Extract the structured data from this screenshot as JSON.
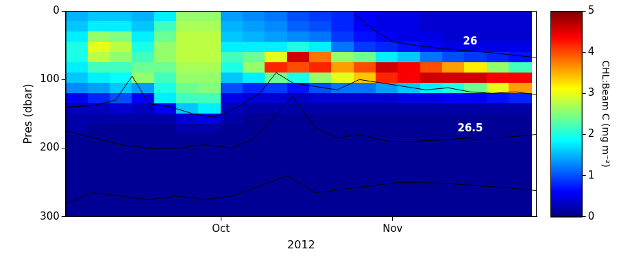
{
  "chart_data": {
    "type": "heatmap",
    "xlabel": "2012",
    "ylabel": "Pres (dbar)",
    "xlim": [
      247,
      332
    ],
    "xticks": [
      {
        "value": 275,
        "label": "Oct"
      },
      {
        "value": 306,
        "label": "Nov"
      }
    ],
    "ylim": [
      300,
      0
    ],
    "yticks": [
      0,
      100,
      200,
      300
    ],
    "grid": false,
    "x_edges": [
      247,
      251,
      255,
      259,
      263,
      267,
      271,
      275,
      279,
      283,
      287,
      291,
      295,
      299,
      303,
      307,
      311,
      315,
      319,
      323,
      327,
      331
    ],
    "y_edges": [
      0,
      15,
      30,
      45,
      60,
      75,
      90,
      105,
      120,
      135,
      150,
      165,
      180,
      195,
      210,
      225,
      240,
      255,
      270,
      285,
      300
    ],
    "cells": [
      [
        1.5,
        1.6,
        1.8,
        2.0,
        2.0,
        1.8,
        1.6,
        1.3,
        0.6,
        0.3,
        0.2,
        0.2,
        0.1,
        0.1,
        0.1,
        0.1,
        0.1,
        0.1,
        0.1,
        0.1
      ],
      [
        1.6,
        1.8,
        2.6,
        3.0,
        2.8,
        2.2,
        1.8,
        1.4,
        0.8,
        0.3,
        0.2,
        0.1,
        0.1,
        0.1,
        0.1,
        0.1,
        0.1,
        0.1,
        0.1,
        0.1
      ],
      [
        1.6,
        1.8,
        2.5,
        2.8,
        2.6,
        2.2,
        1.9,
        1.6,
        1.0,
        0.4,
        0.2,
        0.1,
        0.1,
        0.1,
        0.1,
        0.1,
        0.1,
        0.1,
        0.1,
        0.1
      ],
      [
        1.5,
        1.6,
        1.8,
        2.0,
        2.2,
        2.4,
        2.6,
        1.4,
        0.6,
        0.3,
        0.2,
        0.1,
        0.1,
        0.1,
        0.1,
        0.1,
        0.1,
        0.1,
        0.1,
        0.1
      ],
      [
        1.8,
        2.2,
        2.4,
        2.6,
        2.6,
        2.4,
        2.2,
        2.0,
        1.8,
        0.6,
        0.2,
        0.1,
        0.1,
        0.1,
        0.1,
        0.1,
        0.1,
        0.1,
        0.1,
        0.1
      ],
      [
        2.6,
        2.7,
        2.8,
        2.8,
        2.8,
        2.7,
        2.6,
        2.4,
        2.2,
        1.6,
        0.4,
        0.2,
        0.1,
        0.1,
        0.1,
        0.1,
        0.1,
        0.1,
        0.1,
        0.1
      ],
      [
        2.6,
        2.7,
        2.8,
        2.8,
        2.8,
        2.7,
        2.6,
        2.5,
        2.2,
        1.8,
        0.5,
        0.2,
        0.1,
        0.1,
        0.1,
        0.1,
        0.1,
        0.1,
        0.1,
        0.1
      ],
      [
        1.4,
        1.5,
        1.6,
        1.8,
        2.2,
        2.0,
        1.6,
        1.0,
        0.5,
        0.3,
        0.2,
        0.1,
        0.1,
        0.1,
        0.1,
        0.1,
        0.1,
        0.1,
        0.1,
        0.1
      ],
      [
        1.3,
        1.4,
        1.5,
        1.8,
        2.4,
        2.6,
        1.8,
        0.8,
        0.4,
        0.2,
        0.1,
        0.1,
        0.1,
        0.1,
        0.1,
        0.1,
        0.1,
        0.1,
        0.1,
        0.1
      ],
      [
        1.2,
        1.3,
        1.4,
        1.8,
        3.0,
        4.2,
        2.4,
        0.9,
        0.4,
        0.2,
        0.1,
        0.1,
        0.1,
        0.1,
        0.1,
        0.1,
        0.1,
        0.1,
        0.1,
        0.1
      ],
      [
        1.0,
        1.1,
        1.3,
        2.0,
        4.6,
        4.0,
        2.0,
        0.7,
        0.3,
        0.2,
        0.1,
        0.1,
        0.1,
        0.1,
        0.1,
        0.1,
        0.1,
        0.1,
        0.1,
        0.1
      ],
      [
        0.9,
        1.0,
        1.2,
        1.8,
        3.8,
        4.2,
        2.6,
        1.0,
        0.4,
        0.2,
        0.1,
        0.1,
        0.1,
        0.1,
        0.1,
        0.1,
        0.1,
        0.1,
        0.1,
        0.1
      ],
      [
        0.8,
        0.8,
        0.9,
        1.2,
        2.6,
        3.6,
        3.0,
        1.2,
        0.4,
        0.2,
        0.1,
        0.1,
        0.1,
        0.1,
        0.1,
        0.1,
        0.1,
        0.1,
        0.1,
        0.1
      ],
      [
        0.6,
        0.6,
        0.7,
        0.9,
        2.4,
        4.0,
        3.4,
        1.2,
        0.4,
        0.2,
        0.1,
        0.1,
        0.1,
        0.1,
        0.1,
        0.1,
        0.1,
        0.1,
        0.1,
        0.1
      ],
      [
        0.5,
        0.5,
        0.6,
        0.8,
        1.8,
        4.6,
        4.2,
        1.4,
        0.4,
        0.2,
        0.1,
        0.1,
        0.1,
        0.1,
        0.1,
        0.1,
        0.1,
        0.1,
        0.1,
        0.1
      ],
      [
        0.5,
        0.5,
        0.5,
        0.7,
        1.6,
        4.4,
        4.4,
        1.6,
        0.5,
        0.2,
        0.1,
        0.1,
        0.1,
        0.1,
        0.1,
        0.1,
        0.1,
        0.1,
        0.1,
        0.1
      ],
      [
        0.4,
        0.4,
        0.5,
        0.6,
        1.2,
        4.0,
        4.6,
        1.8,
        0.5,
        0.2,
        0.1,
        0.1,
        0.1,
        0.1,
        0.1,
        0.1,
        0.1,
        0.1,
        0.1,
        0.1
      ],
      [
        0.4,
        0.4,
        0.4,
        0.5,
        1.0,
        3.6,
        4.6,
        2.0,
        0.6,
        0.2,
        0.1,
        0.1,
        0.1,
        0.1,
        0.1,
        0.1,
        0.1,
        0.1,
        0.1,
        0.1
      ],
      [
        0.4,
        0.4,
        0.4,
        0.5,
        0.9,
        3.2,
        4.6,
        2.4,
        0.6,
        0.2,
        0.1,
        0.1,
        0.1,
        0.1,
        0.1,
        0.1,
        0.1,
        0.1,
        0.1,
        0.1
      ],
      [
        0.4,
        0.4,
        0.4,
        0.5,
        0.8,
        2.6,
        4.4,
        3.0,
        0.7,
        0.2,
        0.1,
        0.1,
        0.1,
        0.1,
        0.1,
        0.1,
        0.1,
        0.1,
        0.1,
        0.1
      ],
      [
        0.4,
        0.4,
        0.4,
        0.5,
        0.7,
        2.2,
        4.4,
        3.6,
        0.8,
        0.2,
        0.1,
        0.1,
        0.1,
        0.1,
        0.1,
        0.1,
        0.1,
        0.1,
        0.1,
        0.1
      ]
    ],
    "colorbar": {
      "label": "CHL:Beam C (mg m⁻²)",
      "lim": [
        0,
        5
      ],
      "ticks": [
        0,
        1,
        2,
        3,
        4,
        5
      ]
    },
    "contours": [
      {
        "label": "26",
        "color": "#000000",
        "x": [
          299,
          303,
          306,
          310,
          315,
          320,
          325,
          332
        ],
        "values": [
          5,
          30,
          45,
          50,
          55,
          58,
          62,
          68
        ]
      },
      {
        "color": "#000000",
        "x": [
          247,
          252,
          256,
          259,
          262,
          266,
          270,
          274,
          278,
          282,
          285,
          288,
          292,
          296,
          300,
          304,
          308,
          312,
          316,
          320,
          324,
          328,
          332
        ],
        "values": [
          140,
          138,
          130,
          95,
          135,
          140,
          150,
          155,
          140,
          120,
          90,
          105,
          110,
          115,
          100,
          105,
          110,
          115,
          112,
          118,
          120,
          118,
          122
        ]
      },
      {
        "label": "26.5",
        "color": "#000000",
        "x": [
          247,
          252,
          257,
          262,
          267,
          272,
          277,
          281,
          285,
          288,
          292,
          296,
          300,
          305,
          310,
          315,
          320,
          325,
          332
        ],
        "values": [
          175,
          185,
          195,
          200,
          200,
          195,
          200,
          185,
          150,
          125,
          170,
          185,
          180,
          190,
          190,
          188,
          185,
          185,
          180
        ]
      },
      {
        "color": "#000000",
        "x": [
          247,
          252,
          257,
          262,
          267,
          272,
          277,
          282,
          287,
          292,
          297,
          302,
          307,
          312,
          317,
          322,
          327,
          332
        ],
        "values": [
          280,
          265,
          270,
          275,
          270,
          275,
          270,
          255,
          240,
          265,
          260,
          255,
          250,
          250,
          252,
          255,
          258,
          262
        ]
      }
    ]
  }
}
